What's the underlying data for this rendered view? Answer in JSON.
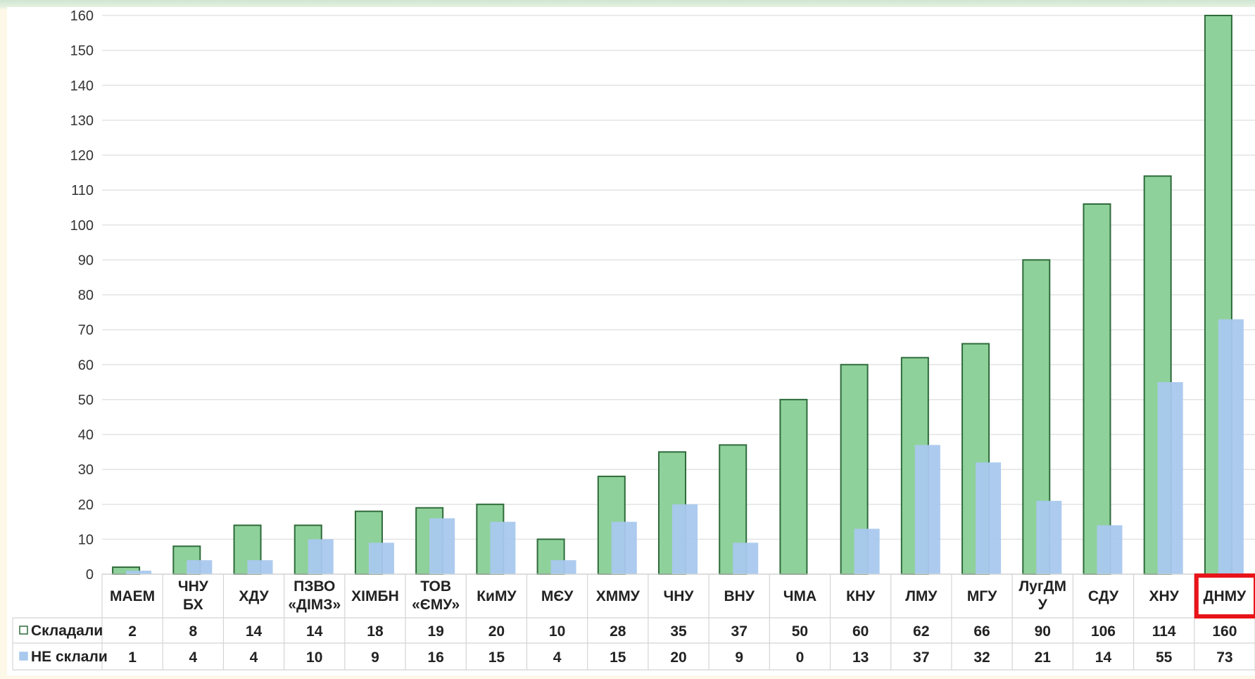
{
  "chart_data": {
    "type": "bar",
    "title": "",
    "xlabel": "",
    "ylabel": "",
    "ylim": [
      0,
      160
    ],
    "yticks": [
      0,
      10,
      20,
      30,
      40,
      50,
      60,
      70,
      80,
      90,
      100,
      110,
      120,
      130,
      140,
      150,
      160
    ],
    "grid": true,
    "legend": "table-left",
    "categories": [
      "МАЕМ",
      "ЧНУ БХ",
      "ХДУ",
      "ПЗВО «ДІМЗ»",
      "ХІМБН",
      "ТОВ «ЄМУ»",
      "КиМУ",
      "МЄУ",
      "ХММУ",
      "ЧНУ",
      "ВНУ",
      "ЧМА",
      "КНУ",
      "ЛМУ",
      "МГУ",
      "ЛугДМ У",
      "СДУ",
      "ХНУ",
      "ДНМУ"
    ],
    "category_lines": [
      [
        "МАЕМ"
      ],
      [
        "ЧНУ",
        "БХ"
      ],
      [
        "ХДУ"
      ],
      [
        "ПЗВО",
        "«ДІМЗ»"
      ],
      [
        "ХІМБН"
      ],
      [
        "ТОВ",
        "«ЄМУ»"
      ],
      [
        "КиМУ"
      ],
      [
        "МЄУ"
      ],
      [
        "ХММУ"
      ],
      [
        "ЧНУ"
      ],
      [
        "ВНУ"
      ],
      [
        "ЧМА"
      ],
      [
        "КНУ"
      ],
      [
        "ЛМУ"
      ],
      [
        "МГУ"
      ],
      [
        "ЛугДМ",
        "У"
      ],
      [
        "СДУ"
      ],
      [
        "ХНУ"
      ],
      [
        "ДНМУ"
      ]
    ],
    "highlighted_category": "ДНМУ",
    "series": [
      {
        "name": "Складали",
        "color": "#8fd19b",
        "stroke": "#2e6b3a",
        "values": [
          2,
          8,
          14,
          14,
          18,
          19,
          20,
          10,
          28,
          35,
          37,
          50,
          60,
          62,
          66,
          90,
          106,
          114,
          160
        ]
      },
      {
        "name": "НЕ склали",
        "color": "#a9c8ee",
        "values": [
          1,
          4,
          4,
          10,
          9,
          16,
          15,
          4,
          15,
          20,
          9,
          0,
          13,
          37,
          32,
          21,
          14,
          55,
          73
        ]
      }
    ]
  },
  "colors": {
    "highlight": "#e8141a",
    "grid": "#e3e3e3"
  }
}
